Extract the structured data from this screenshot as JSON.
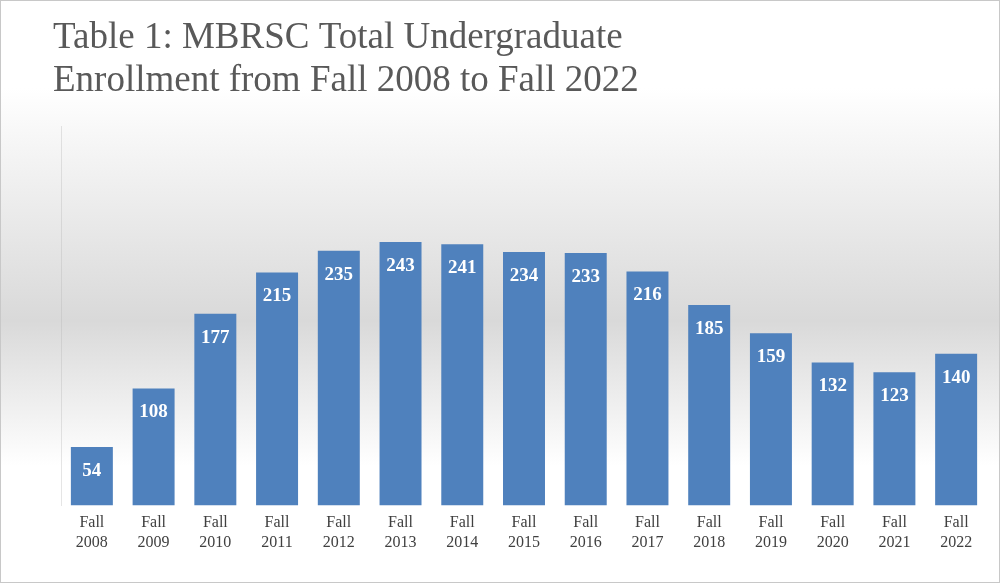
{
  "chart_data": {
    "type": "bar",
    "title": [
      "Table 1: MBRSC Total Undergraduate",
      "Enrollment from Fall 2008 to Fall 2022"
    ],
    "categories": [
      "Fall 2008",
      "Fall 2009",
      "Fall 2010",
      "Fall 2011",
      "Fall 2012",
      "Fall 2013",
      "Fall 2014",
      "Fall 2015",
      "Fall 2016",
      "Fall 2017",
      "Fall 2018",
      "Fall 2019",
      "Fall 2020",
      "Fall 2021",
      "Fall 2022"
    ],
    "values": [
      54,
      108,
      177,
      215,
      235,
      243,
      241,
      234,
      233,
      216,
      185,
      159,
      132,
      123,
      140
    ],
    "color": "#4f81bd",
    "ylim": [
      0,
      350
    ],
    "grid": false,
    "data_labels": true,
    "tick_labels": "x"
  }
}
